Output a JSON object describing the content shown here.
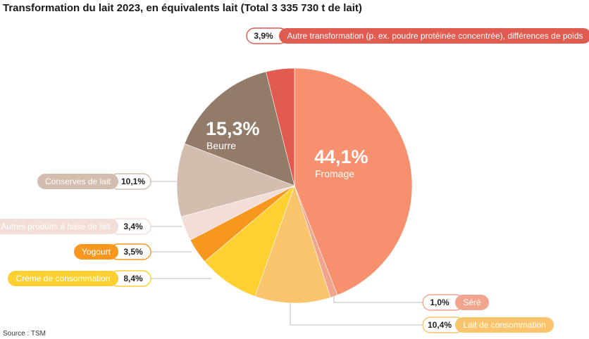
{
  "title": "Transformation du lait 2023, en équivalents lait (Total 3 335 730 t de lait)",
  "source": "Source : TSM",
  "chart_data": {
    "type": "pie",
    "title": "Transformation du lait 2023, en équivalents lait (Total 3 335 730 t de lait)",
    "slices": [
      {
        "label": "Fromage",
        "value": 44.1,
        "display": "44,1%",
        "color": "#F7906F"
      },
      {
        "label": "Séré",
        "value": 1.0,
        "display": "1,0%",
        "color": "#F2A58E"
      },
      {
        "label": "Lait de consommation",
        "value": 10.4,
        "display": "10,4%",
        "color": "#F9C46B"
      },
      {
        "label": "Crème de consommation",
        "value": 8.4,
        "display": "8,4%",
        "color": "#FED032"
      },
      {
        "label": "Yogourt",
        "value": 3.5,
        "display": "3,5%",
        "color": "#F7971E"
      },
      {
        "label": "Autres produits à base de lait",
        "value": 3.4,
        "display": "3,4%",
        "color": "#F3DDD7"
      },
      {
        "label": "Conserves de lait",
        "value": 10.1,
        "display": "10,1%",
        "color": "#D3BDAE"
      },
      {
        "label": "Beurre",
        "value": 15.3,
        "display": "15,3%",
        "color": "#937B6A"
      },
      {
        "label": "Autre transformation (p. ex. poudre protéinée concentrée), différences de poids",
        "value": 3.9,
        "display": "3,9%",
        "color": "#E05B50"
      }
    ]
  }
}
